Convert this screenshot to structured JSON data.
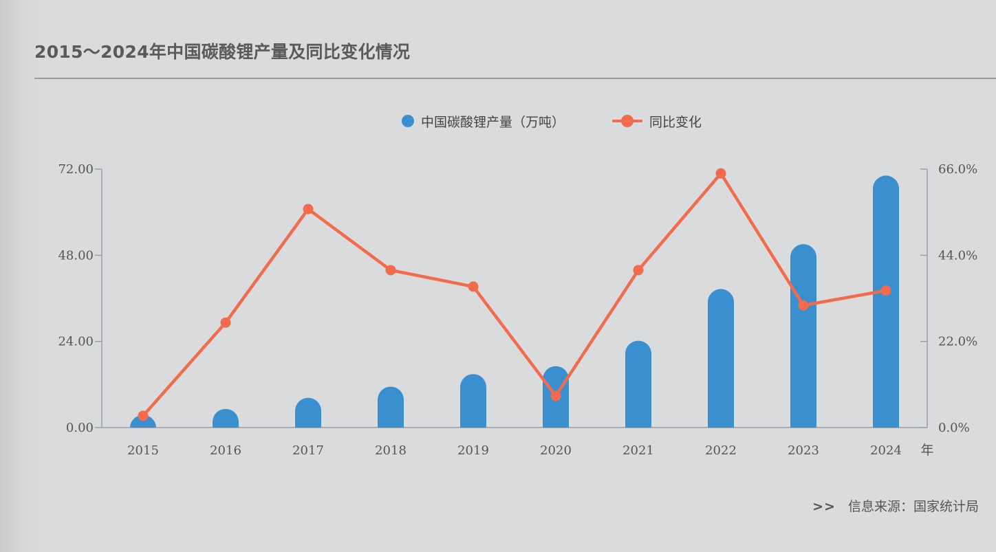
{
  "title": "2015～2024年中国碳酸锂产量及同比变化情况",
  "legend": {
    "bar_label": "中国碳酸锂产量（万吨）",
    "line_label": "同比变化"
  },
  "colors": {
    "bar": "#3a8fcf",
    "line": "#f26b4c",
    "axis": "#9aa0a6"
  },
  "source": {
    "arrow": ">>",
    "text": "信息来源：国家统计局"
  },
  "chart_data": {
    "type": "bar",
    "categories": [
      "2015",
      "2016",
      "2017",
      "2018",
      "2019",
      "2020",
      "2021",
      "2022",
      "2023",
      "2024"
    ],
    "x_unit": "年",
    "series": [
      {
        "name": "中国碳酸锂产量（万吨）",
        "type": "bar",
        "axis": "left",
        "values": [
          3.5,
          5.2,
          8.3,
          11.4,
          14.9,
          17.1,
          24.2,
          38.6,
          51.1,
          70.2
        ]
      },
      {
        "name": "同比变化",
        "type": "line",
        "axis": "right",
        "values": [
          3.0,
          26.8,
          55.8,
          40.2,
          36.0,
          8.1,
          40.2,
          64.9,
          31.2,
          35.0
        ]
      }
    ],
    "y_left": {
      "min": 0,
      "max": 72,
      "ticks": [
        "0.00",
        "24.00",
        "48.00",
        "72.00"
      ]
    },
    "y_right": {
      "min": 0,
      "max": 66,
      "ticks": [
        "0.0%",
        "22.0%",
        "44.0%",
        "66.0%"
      ]
    },
    "grid": false,
    "legend_position": "top-center"
  }
}
